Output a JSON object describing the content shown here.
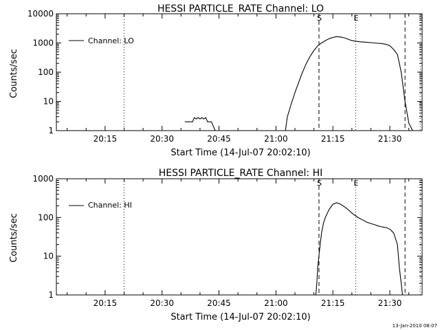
{
  "chart_data": [
    {
      "type": "line",
      "title": "HESSI PARTICLE_RATE Channel: LO",
      "xlabel": "Start Time (14-Jul-07 20:02:10)",
      "ylabel": "Counts/sec",
      "y_scale": "log",
      "ylim": [
        1,
        10000
      ],
      "xlim": [
        "20:02:10",
        "21:38:30"
      ],
      "x_ticks": [
        "20:15",
        "20:30",
        "20:45",
        "21:00",
        "21:15",
        "21:30"
      ],
      "y_ticks": [
        "1",
        "10",
        "100",
        "1000",
        "10000"
      ],
      "grid": false,
      "legend_position": "top-left",
      "series": [
        {
          "name": "Channel: LO",
          "x": [
            "20:36:00",
            "20:38:00",
            "20:38:30",
            "20:39:00",
            "20:39:30",
            "20:40:00",
            "20:40:30",
            "20:41:00",
            "20:41:30",
            "20:42:00",
            "20:43:00",
            "20:44:00",
            "21:02:30",
            "21:03:00",
            "21:04:00",
            "21:05:00",
            "21:06:00",
            "21:07:00",
            "21:08:00",
            "21:09:00",
            "21:10:00",
            "21:11:00",
            "21:12:00",
            "21:13:00",
            "21:14:00",
            "21:15:00",
            "21:16:00",
            "21:17:00",
            "21:18:00",
            "21:19:00",
            "21:20:00",
            "21:22:00",
            "21:24:00",
            "21:26:00",
            "21:28:00",
            "21:29:00",
            "21:30:00",
            "21:31:00",
            "21:32:00",
            "21:33:00",
            "21:34:00",
            "21:35:00",
            "21:36:00"
          ],
          "values": [
            2,
            2,
            2.8,
            2.5,
            2.8,
            2.5,
            2.8,
            2.5,
            2.8,
            2,
            2,
            1,
            1,
            3,
            8,
            20,
            45,
            100,
            200,
            350,
            550,
            800,
            1000,
            1200,
            1400,
            1550,
            1650,
            1600,
            1500,
            1350,
            1200,
            1100,
            1050,
            1000,
            950,
            900,
            800,
            600,
            400,
            100,
            10,
            1.8,
            1
          ]
        }
      ],
      "markers": [
        {
          "label": "S",
          "x": "21:11:20",
          "style": "dashed"
        },
        {
          "label": "E",
          "x": "21:21:00",
          "style": "dotted"
        },
        {
          "label": "",
          "x": "20:20:00",
          "style": "dotted"
        },
        {
          "label": "",
          "x": "21:34:00",
          "style": "dashed"
        },
        {
          "label": "",
          "x": "21:38:00",
          "style": "dotted"
        }
      ]
    },
    {
      "type": "line",
      "title": "HESSI PARTICLE_RATE Channel: HI",
      "xlabel": "Start Time (14-Jul-07 20:02:10)",
      "ylabel": "Counts/sec",
      "y_scale": "log",
      "ylim": [
        1,
        1000
      ],
      "xlim": [
        "20:02:10",
        "21:38:30"
      ],
      "x_ticks": [
        "20:15",
        "20:30",
        "20:45",
        "21:00",
        "21:15",
        "21:30"
      ],
      "y_ticks": [
        "1",
        "10",
        "100",
        "1000"
      ],
      "grid": false,
      "legend_position": "top-left",
      "series": [
        {
          "name": "Channel: HI",
          "x": [
            "21:10:30",
            "21:10:45",
            "21:11:00",
            "21:11:30",
            "21:12:00",
            "21:12:30",
            "21:13:00",
            "21:14:00",
            "21:15:00",
            "21:16:00",
            "21:17:00",
            "21:18:00",
            "21:19:00",
            "21:20:00",
            "21:21:00",
            "21:22:00",
            "21:23:00",
            "21:24:00",
            "21:25:00",
            "21:26:00",
            "21:27:00",
            "21:28:00",
            "21:29:00",
            "21:30:00",
            "21:31:00",
            "21:32:00",
            "21:32:30",
            "21:33:00",
            "21:33:20"
          ],
          "values": [
            1,
            2,
            5,
            15,
            40,
            70,
            100,
            160,
            220,
            240,
            220,
            190,
            160,
            130,
            110,
            95,
            85,
            75,
            70,
            65,
            60,
            57,
            55,
            50,
            40,
            20,
            5,
            2,
            1
          ]
        }
      ],
      "markers": [
        {
          "label": "S",
          "x": "21:11:20",
          "style": "dashed"
        },
        {
          "label": "E",
          "x": "21:21:00",
          "style": "dotted"
        },
        {
          "label": "",
          "x": "20:20:00",
          "style": "dotted"
        },
        {
          "label": "",
          "x": "21:34:00",
          "style": "dashed"
        },
        {
          "label": "",
          "x": "21:38:00",
          "style": "dotted"
        }
      ]
    }
  ],
  "footer": {
    "timestamp": "13-Jan-2010 08:07"
  }
}
